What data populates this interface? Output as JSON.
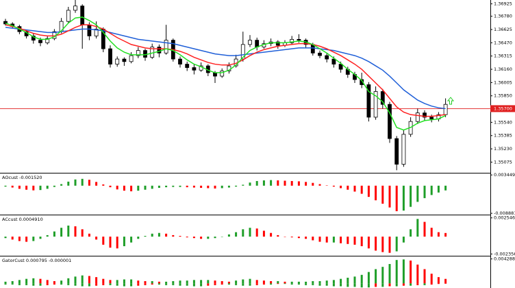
{
  "chart_data": [
    {
      "type": "candlestick",
      "ohlc": [
        [
          1.3672,
          1.3675,
          1.3667,
          1.3669
        ],
        [
          1.3669,
          1.3671,
          1.3664,
          1.3666
        ],
        [
          1.3666,
          1.3668,
          1.3657,
          1.366
        ],
        [
          1.366,
          1.3662,
          1.3652,
          1.3655
        ],
        [
          1.3655,
          1.3658,
          1.3646,
          1.365
        ],
        [
          1.365,
          1.3653,
          1.3643,
          1.3647
        ],
        [
          1.3647,
          1.3655,
          1.3645,
          1.3652
        ],
        [
          1.3652,
          1.3663,
          1.365,
          1.366
        ],
        [
          1.366,
          1.3676,
          1.3658,
          1.3672
        ],
        [
          1.3672,
          1.3689,
          1.367,
          1.3685
        ],
        [
          1.3685,
          1.3697,
          1.3682,
          1.369
        ],
        [
          1.369,
          1.3692,
          1.364,
          1.3668
        ],
        [
          1.3668,
          1.3671,
          1.365,
          1.3655
        ],
        [
          1.3655,
          1.3672,
          1.3652,
          1.3663
        ],
        [
          1.3663,
          1.3665,
          1.3636,
          1.364
        ],
        [
          1.364,
          1.3644,
          1.3618,
          1.3622
        ],
        [
          1.3622,
          1.3631,
          1.3619,
          1.3628
        ],
        [
          1.3628,
          1.363,
          1.362,
          1.3625
        ],
        [
          1.3625,
          1.3636,
          1.3623,
          1.3632
        ],
        [
          1.3632,
          1.3642,
          1.3629,
          1.3638
        ],
        [
          1.3638,
          1.364,
          1.3626,
          1.363
        ],
        [
          1.363,
          1.3646,
          1.3628,
          1.3642
        ],
        [
          1.3642,
          1.3645,
          1.363,
          1.3635
        ],
        [
          1.3635,
          1.3668,
          1.3633,
          1.365
        ],
        [
          1.365,
          1.3652,
          1.3625,
          1.3628
        ],
        [
          1.3628,
          1.3631,
          1.3618,
          1.3622
        ],
        [
          1.3622,
          1.3625,
          1.3614,
          1.3618
        ],
        [
          1.3618,
          1.3622,
          1.361,
          1.3615
        ],
        [
          1.3615,
          1.3624,
          1.3613,
          1.362
        ],
        [
          1.362,
          1.3622,
          1.3608,
          1.3612
        ],
        [
          1.3612,
          1.3614,
          1.36,
          1.3608
        ],
        [
          1.3608,
          1.3617,
          1.3606,
          1.3614
        ],
        [
          1.3614,
          1.3624,
          1.3611,
          1.362
        ],
        [
          1.362,
          1.3633,
          1.3618,
          1.3628
        ],
        [
          1.3628,
          1.366,
          1.3625,
          1.3645
        ],
        [
          1.3645,
          1.3656,
          1.3642,
          1.365
        ],
        [
          1.365,
          1.3653,
          1.3638,
          1.3642
        ],
        [
          1.3642,
          1.365,
          1.364,
          1.3646
        ],
        [
          1.3646,
          1.3652,
          1.3643,
          1.3648
        ],
        [
          1.3648,
          1.365,
          1.364,
          1.3644
        ],
        [
          1.3644,
          1.365,
          1.3642,
          1.3647
        ],
        [
          1.3647,
          1.3655,
          1.3645,
          1.3651
        ],
        [
          1.3651,
          1.3657,
          1.3647,
          1.365
        ],
        [
          1.365,
          1.3652,
          1.3641,
          1.3645
        ],
        [
          1.3645,
          1.3647,
          1.3632,
          1.3635
        ],
        [
          1.3635,
          1.3638,
          1.3629,
          1.3632
        ],
        [
          1.3632,
          1.3635,
          1.3624,
          1.3628
        ],
        [
          1.3628,
          1.3631,
          1.3618,
          1.3622
        ],
        [
          1.3622,
          1.3625,
          1.3612,
          1.3616
        ],
        [
          1.3616,
          1.3619,
          1.3606,
          1.361
        ],
        [
          1.361,
          1.3613,
          1.36,
          1.3604
        ],
        [
          1.3604,
          1.3612,
          1.3594,
          1.3598
        ],
        [
          1.3598,
          1.3601,
          1.3555,
          1.356
        ],
        [
          1.356,
          1.3596,
          1.3557,
          1.359
        ],
        [
          1.359,
          1.3593,
          1.357,
          1.3575
        ],
        [
          1.3575,
          1.3578,
          1.353,
          1.3535
        ],
        [
          1.3535,
          1.3538,
          1.3498,
          1.3505
        ],
        [
          1.3505,
          1.3545,
          1.3502,
          1.354
        ],
        [
          1.354,
          1.356,
          1.3537,
          1.3555
        ],
        [
          1.3555,
          1.357,
          1.3552,
          1.3565
        ],
        [
          1.3565,
          1.3568,
          1.3556,
          1.356
        ],
        [
          1.356,
          1.3563,
          1.3554,
          1.3558
        ],
        [
          1.3558,
          1.3566,
          1.3555,
          1.3563
        ],
        [
          1.3563,
          1.3582,
          1.356,
          1.3575
        ]
      ],
      "up_color": "#ffffff",
      "down_color": "#000000",
      "series": [
        {
          "color": "#1f5fd8",
          "values": [
            1.3665,
            1.3664,
            1.3663,
            1.3662,
            1.3661,
            1.366,
            1.3659,
            1.3659,
            1.366,
            1.3661,
            1.3662,
            1.3663,
            1.3663,
            1.3662,
            1.3661,
            1.3659,
            1.3657,
            1.3655,
            1.3653,
            1.3651,
            1.365,
            1.3649,
            1.3648,
            1.3647,
            1.3646,
            1.3644,
            1.3642,
            1.364,
            1.3638,
            1.3636,
            1.3634,
            1.3633,
            1.3632,
            1.3632,
            1.3633,
            1.3634,
            1.3635,
            1.3636,
            1.3637,
            1.3638,
            1.3639,
            1.364,
            1.3641,
            1.3641,
            1.3641,
            1.364,
            1.3639,
            1.3638,
            1.3636,
            1.3634,
            1.3632,
            1.3629,
            1.3625,
            1.362,
            1.3615,
            1.3608,
            1.36,
            1.3592,
            1.3586,
            1.358,
            1.3576,
            1.3573,
            1.3571,
            1.357
          ]
        },
        {
          "color": "#ff2020",
          "values": [
            1.3668,
            1.3666,
            1.3664,
            1.3661,
            1.3658,
            1.3656,
            1.3655,
            1.3655,
            1.3657,
            1.3661,
            1.3665,
            1.3668,
            1.3668,
            1.3666,
            1.3663,
            1.3658,
            1.3653,
            1.3649,
            1.3645,
            1.3643,
            1.3641,
            1.364,
            1.364,
            1.364,
            1.3639,
            1.3637,
            1.3634,
            1.363,
            1.3627,
            1.3624,
            1.3622,
            1.3621,
            1.3621,
            1.3623,
            1.3627,
            1.3632,
            1.3636,
            1.3639,
            1.3641,
            1.3643,
            1.3644,
            1.3645,
            1.3646,
            1.3646,
            1.3645,
            1.3643,
            1.364,
            1.3636,
            1.3632,
            1.3627,
            1.3622,
            1.3616,
            1.3608,
            1.36,
            1.3592,
            1.3582,
            1.3572,
            1.3566,
            1.3563,
            1.3562,
            1.3561,
            1.3561,
            1.3562,
            1.3563
          ]
        },
        {
          "color": "#22e022",
          "values": [
            1.367,
            1.3667,
            1.3663,
            1.3659,
            1.3654,
            1.3651,
            1.3651,
            1.3654,
            1.3661,
            1.367,
            1.3676,
            1.3677,
            1.3673,
            1.3668,
            1.3659,
            1.3649,
            1.3641,
            1.3636,
            1.3633,
            1.3633,
            1.3633,
            1.3635,
            1.3637,
            1.364,
            1.3638,
            1.3633,
            1.3627,
            1.3622,
            1.3619,
            1.3615,
            1.3612,
            1.3612,
            1.3615,
            1.3621,
            1.363,
            1.3638,
            1.3642,
            1.3645,
            1.3647,
            1.3647,
            1.3647,
            1.3648,
            1.3649,
            1.3648,
            1.3645,
            1.364,
            1.3635,
            1.3629,
            1.3623,
            1.3616,
            1.361,
            1.3603,
            1.359,
            1.3585,
            1.3578,
            1.3565,
            1.3548,
            1.3545,
            1.3548,
            1.3553,
            1.3556,
            1.3557,
            1.3558,
            1.3562
          ]
        }
      ],
      "ylim": [
        1.3495,
        1.3697
      ],
      "yticks": [
        1.36925,
        {
          "value": 1.3678,
          "label": "1.36780"
        },
        1.36625,
        {
          "value": 1.3647,
          "label": "1.36470"
        },
        1.36315,
        {
          "value": 1.3616,
          "label": "1.36160"
        },
        1.36005,
        {
          "value": 1.3585,
          "label": "1.35850"
        },
        {
          "value": 1.3554,
          "label": "1.35540"
        },
        1.35385,
        {
          "value": 1.3523,
          "label": "1.35230"
        },
        1.35075
      ],
      "current_price": {
        "value": 1.357,
        "label": "1.35700"
      },
      "current_price_color": "#e02020"
    },
    {
      "type": "oscillator",
      "title": "AOcust -0.001520",
      "up_color": "#1e9e28",
      "down_color": "#ff0000",
      "values": [
        -0.0003,
        -0.0006,
        -0.001,
        -0.0013,
        -0.0015,
        -0.0014,
        -0.001,
        -0.0004,
        0.0005,
        0.0013,
        0.002,
        0.0022,
        0.0019,
        0.0012,
        0.0004,
        -0.0005,
        -0.0012,
        -0.0016,
        -0.0018,
        -0.0016,
        -0.0013,
        -0.001,
        -0.0007,
        -0.0005,
        -0.0004,
        -0.0004,
        -0.0005,
        -0.0006,
        -0.0007,
        -0.0008,
        -0.0009,
        -0.0008,
        -0.0006,
        -0.0003,
        0.0003,
        0.001,
        0.0015,
        0.0017,
        0.0018,
        0.0017,
        0.0016,
        0.0015,
        0.0014,
        0.0012,
        0.0009,
        0.0005,
        0.0001,
        -0.0003,
        -0.0008,
        -0.0013,
        -0.0019,
        -0.0026,
        -0.0036,
        -0.0047,
        -0.0058,
        -0.007,
        -0.0082,
        -0.008,
        -0.0068,
        -0.0052,
        -0.004,
        -0.003,
        -0.0022,
        -0.00152
      ],
      "ylim": [
        -0.0093,
        0.0037
      ],
      "yticks": [
        0.003449,
        -0.008881
      ]
    },
    {
      "type": "oscillator",
      "title": "ACcust 0.0004910",
      "up_color": "#1e9e28",
      "down_color": "#ff0000",
      "values": [
        -0.0002,
        -0.0004,
        -0.0006,
        -0.0007,
        -0.0006,
        -0.0003,
        0.0002,
        0.0007,
        0.0012,
        0.0015,
        0.0014,
        0.001,
        0.0004,
        -0.0004,
        -0.0011,
        -0.0015,
        -0.0016,
        -0.0013,
        -0.0008,
        -0.0003,
        0.0001,
        0.0004,
        0.0005,
        0.0004,
        0.0002,
        0.0001,
        -0.0001,
        -0.0002,
        -0.0003,
        -0.0003,
        -0.0002,
        0,
        0.0003,
        0.0006,
        0.001,
        0.0012,
        0.0011,
        0.0008,
        0.0005,
        0.0002,
        0,
        -0.0001,
        -0.0002,
        -0.0003,
        -0.0005,
        -0.0007,
        -0.0008,
        -0.0008,
        -0.0009,
        -0.001,
        -0.0011,
        -0.0013,
        -0.0016,
        -0.0019,
        -0.0021,
        -0.0022,
        -0.002,
        -0.0008,
        0.001,
        0.0024,
        0.002,
        0.0012,
        0.0006,
        0.000491
      ],
      "ylim": [
        -0.0026,
        0.0028
      ],
      "yticks": [
        0.0025465,
        -0.0023561
      ]
    },
    {
      "type": "gator",
      "title": "GatorCust 0.000795 -0.000001",
      "up_color": "#1e9e28",
      "down_color": "#ff0000",
      "series": [
        {
          "values": [
            0.0003,
            0.0004,
            0.0006,
            0.0008,
            0.0009,
            0.0008,
            0.0006,
            0.0004,
            0.0005,
            0.0009,
            0.0012,
            0.0014,
            0.0013,
            0.0011,
            0.0008,
            0.0006,
            0.0006,
            0.0007,
            0.0007,
            0.0005,
            0.0004,
            0.0004,
            0.0003,
            0.0003,
            0.0004,
            0.0005,
            0.0005,
            0.0006,
            0.0006,
            0.0006,
            0.0005,
            0.0004,
            0.0003,
            0.0005,
            0.0007,
            0.0008,
            0.0006,
            0.0005,
            0.0004,
            0.0004,
            0.0003,
            0.0003,
            0.0003,
            0.0003,
            0.0004,
            0.0004,
            0.0005,
            0.0006,
            0.0008,
            0.001,
            0.0012,
            0.0015,
            0.002,
            0.0025,
            0.0029,
            0.0034,
            0.0041,
            0.0042,
            0.004,
            0.0033,
            0.0025,
            0.0017,
            0.0011,
            0.000795
          ]
        },
        {
          "values": [
            -0.0002,
            -0.0002,
            -0.0003,
            -0.0003,
            -0.0004,
            -0.0004,
            -0.0003,
            -0.0002,
            -0.0002,
            -0.0003,
            -0.0004,
            -0.0005,
            -0.0005,
            -0.0004,
            -0.0003,
            -0.0003,
            -0.0004,
            -0.0005,
            -0.0005,
            -0.0004,
            -0.0003,
            -0.0002,
            -0.0002,
            -0.0003,
            -0.0003,
            -0.0004,
            -0.0004,
            -0.0005,
            -0.0005,
            -0.0004,
            -0.0003,
            -0.0002,
            -0.0002,
            -0.0003,
            -0.0004,
            -0.0004,
            -0.0003,
            -0.0002,
            -0.0002,
            -0.0001,
            -0.0001,
            -0.0002,
            -0.0002,
            -0.0003,
            -0.0003,
            -0.0004,
            -0.0004,
            -0.0005,
            -0.0005,
            -0.0006,
            -0.0006,
            -0.0007,
            -0.0007,
            -0.0006,
            -0.0006,
            -0.0005,
            -0.0005,
            -0.0004,
            -0.0004,
            -0.0003,
            -0.0003,
            -0.0002,
            -0.0001,
            -1e-06
          ]
        }
      ],
      "ylim": [
        -0.0008,
        0.0046
      ],
      "yticks": [
        0.004288
      ]
    }
  ]
}
